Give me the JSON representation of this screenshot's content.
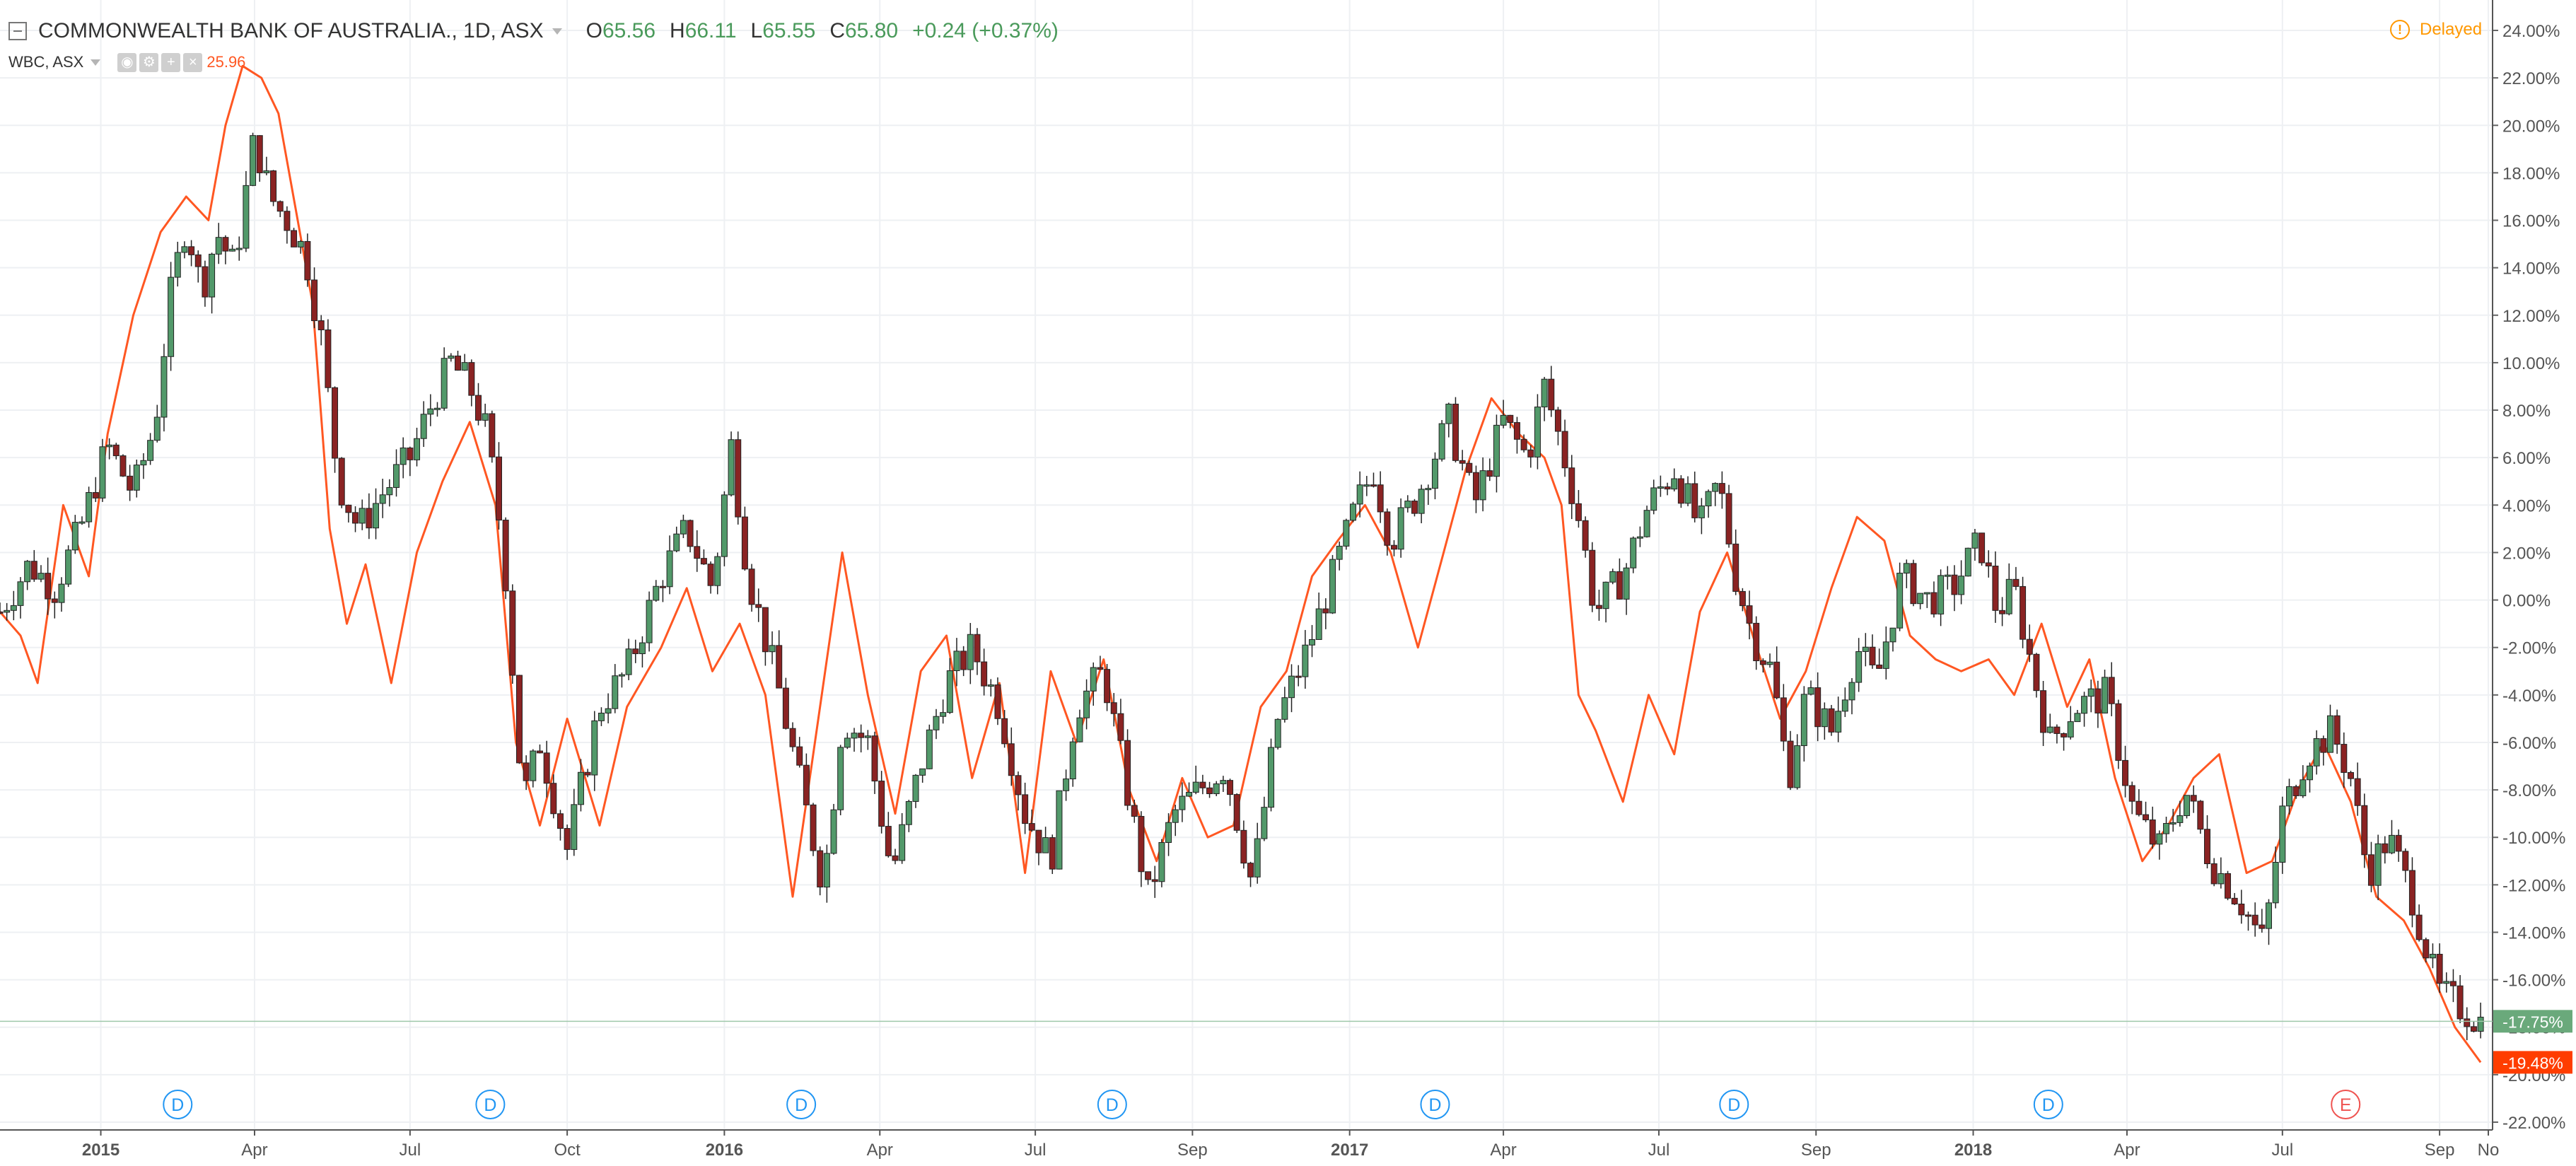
{
  "window": {
    "symbol_title": "COMMONWEALTH BANK OF AUSTRALIA., 1D, ASX",
    "ohlc": [
      {
        "key": "O",
        "value": "65.56"
      },
      {
        "key": "H",
        "value": "66.11"
      },
      {
        "key": "L",
        "value": "65.55"
      },
      {
        "key": "C",
        "value": "65.80"
      }
    ],
    "change": "+0.24 (+0.37%)",
    "delayed_label": "Delayed",
    "compare": {
      "symbol": "WBC, ASX",
      "value": "25.96"
    }
  },
  "colors": {
    "up": "#52996a",
    "down": "#8a2323",
    "compare": "#ff5722",
    "ohlc_green": "#4a9a5b",
    "grid": "#eef0f3",
    "axis": "#555555",
    "delayed": "#ff9800",
    "dividend_marker": "#2196f3",
    "earnings_marker": "#ef5350",
    "last_value_main_bg": "#6aa97b",
    "last_value_compare_bg": "#ff3d00"
  },
  "icons": {
    "collapse": "minus-square-icon",
    "dropdown": "chevron-down-icon",
    "visibility": "eye-icon",
    "settings": "gear-icon",
    "add": "plus-icon",
    "remove": "close-icon",
    "delayed": "exclamation-circle-icon"
  },
  "chart_data": {
    "type": "candlestick",
    "scale": "percentage",
    "ylim": [
      -22,
      24
    ],
    "y_ticks": [
      "24.00%",
      "22.00%",
      "20.00%",
      "18.00%",
      "16.00%",
      "14.00%",
      "12.00%",
      "10.00%",
      "8.00%",
      "6.00%",
      "4.00%",
      "2.00%",
      "0.00%",
      "-2.00%",
      "-4.00%",
      "-6.00%",
      "-8.00%",
      "-10.00%",
      "-12.00%",
      "-14.00%",
      "-16.00%",
      "-18.00%",
      "-20.00%",
      "-22.00%"
    ],
    "x_ticks": [
      "2015",
      "Apr",
      "Jul",
      "Oct",
      "2016",
      "Apr",
      "Jul",
      "Sep",
      "2017",
      "Apr",
      "Jul",
      "Sep",
      "2018",
      "Apr",
      "Jul",
      "Sep",
      "No"
    ],
    "xlim": [
      "2014-11-03",
      "2018-11-01"
    ],
    "grid": true,
    "series": [
      {
        "name": "COMMONWEALTH BANK OF AUSTRALIA., 1D, ASX",
        "style": "candles",
        "last_value_label": "-17.75%",
        "points": [
          [
            "2014-11-03",
            -0.5
          ],
          [
            "2014-11-20",
            1.5
          ],
          [
            "2014-12-05",
            0.5
          ],
          [
            "2014-12-20",
            3.0
          ],
          [
            "2015-01-05",
            6.5
          ],
          [
            "2015-01-20",
            4.5
          ],
          [
            "2015-02-02",
            7.5
          ],
          [
            "2015-02-10",
            12.5
          ],
          [
            "2015-02-20",
            16.0
          ],
          [
            "2015-03-01",
            13.0
          ],
          [
            "2015-03-10",
            15.5
          ],
          [
            "2015-03-20",
            14.0
          ],
          [
            "2015-04-01",
            19.5
          ],
          [
            "2015-04-10",
            17.0
          ],
          [
            "2015-04-20",
            16.0
          ],
          [
            "2015-05-01",
            14.5
          ],
          [
            "2015-05-10",
            11.0
          ],
          [
            "2015-05-20",
            5.0
          ],
          [
            "2015-06-01",
            3.0
          ],
          [
            "2015-06-15",
            4.5
          ],
          [
            "2015-07-01",
            6.0
          ],
          [
            "2015-07-15",
            8.5
          ],
          [
            "2015-07-25",
            10.0
          ],
          [
            "2015-08-05",
            9.0
          ],
          [
            "2015-08-15",
            7.0
          ],
          [
            "2015-08-25",
            2.0
          ],
          [
            "2015-09-05",
            -8.5
          ],
          [
            "2015-09-15",
            -6.0
          ],
          [
            "2015-10-01",
            -10.5
          ],
          [
            "2015-10-20",
            -4.5
          ],
          [
            "2015-11-05",
            -3.0
          ],
          [
            "2015-11-25",
            1.0
          ],
          [
            "2015-12-10",
            3.0
          ],
          [
            "2015-12-25",
            0.5
          ],
          [
            "2016-01-05",
            6.5
          ],
          [
            "2016-01-15",
            1.0
          ],
          [
            "2016-02-01",
            -3.5
          ],
          [
            "2016-02-15",
            -8.0
          ],
          [
            "2016-02-28",
            -12.0
          ],
          [
            "2016-03-10",
            -5.0
          ],
          [
            "2016-03-25",
            -6.0
          ],
          [
            "2016-04-08",
            -11.5
          ],
          [
            "2016-04-25",
            -7.0
          ],
          [
            "2016-05-10",
            -3.5
          ],
          [
            "2016-05-25",
            -2.0
          ],
          [
            "2016-06-10",
            -4.5
          ],
          [
            "2016-06-25",
            -9.0
          ],
          [
            "2016-07-10",
            -11.0
          ],
          [
            "2016-07-25",
            -4.5
          ],
          [
            "2016-08-10",
            -3.0
          ],
          [
            "2016-08-25",
            -8.5
          ],
          [
            "2016-09-05",
            -12.5
          ],
          [
            "2016-09-20",
            -9.0
          ],
          [
            "2016-10-05",
            -8.0
          ],
          [
            "2016-10-20",
            -7.0
          ],
          [
            "2016-11-05",
            -12.0
          ],
          [
            "2016-11-20",
            -5.0
          ],
          [
            "2016-12-05",
            -2.5
          ],
          [
            "2016-12-20",
            0.5
          ],
          [
            "2017-01-05",
            4.0
          ],
          [
            "2017-01-15",
            5.5
          ],
          [
            "2017-01-25",
            2.5
          ],
          [
            "2017-02-10",
            4.5
          ],
          [
            "2017-02-28",
            7.5
          ],
          [
            "2017-03-15",
            4.0
          ],
          [
            "2017-04-01",
            7.5
          ],
          [
            "2017-04-15",
            6.0
          ],
          [
            "2017-04-25",
            9.0
          ],
          [
            "2017-05-05",
            6.5
          ],
          [
            "2017-05-15",
            3.5
          ],
          [
            "2017-05-25",
            -0.5
          ],
          [
            "2017-06-10",
            1.0
          ],
          [
            "2017-06-25",
            4.0
          ],
          [
            "2017-07-10",
            5.5
          ],
          [
            "2017-07-25",
            3.0
          ],
          [
            "2017-08-05",
            5.0
          ],
          [
            "2017-08-15",
            1.0
          ],
          [
            "2017-08-25",
            -1.5
          ],
          [
            "2017-09-05",
            -3.0
          ],
          [
            "2017-09-15",
            -7.5
          ],
          [
            "2017-09-25",
            -4.0
          ],
          [
            "2017-10-10",
            -5.5
          ],
          [
            "2017-10-25",
            -2.0
          ],
          [
            "2017-11-05",
            -3.5
          ],
          [
            "2017-11-20",
            1.0
          ],
          [
            "2017-12-05",
            0.0
          ],
          [
            "2017-12-20",
            0.5
          ],
          [
            "2018-01-05",
            2.5
          ],
          [
            "2018-01-15",
            -0.5
          ],
          [
            "2018-01-25",
            0.5
          ],
          [
            "2018-02-05",
            -3.0
          ],
          [
            "2018-02-15",
            -6.0
          ],
          [
            "2018-03-01",
            -4.5
          ],
          [
            "2018-03-20",
            -4.0
          ],
          [
            "2018-04-05",
            -9.0
          ],
          [
            "2018-04-20",
            -10.5
          ],
          [
            "2018-05-05",
            -8.0
          ],
          [
            "2018-05-20",
            -11.0
          ],
          [
            "2018-06-05",
            -12.5
          ],
          [
            "2018-06-20",
            -14.5
          ],
          [
            "2018-07-01",
            -9.0
          ],
          [
            "2018-07-15",
            -6.5
          ],
          [
            "2018-07-30",
            -5.5
          ],
          [
            "2018-08-10",
            -7.5
          ],
          [
            "2018-08-20",
            -11.5
          ],
          [
            "2018-09-01",
            -10.0
          ],
          [
            "2018-09-15",
            -12.5
          ],
          [
            "2018-09-30",
            -16.5
          ],
          [
            "2018-10-10",
            -17.0
          ],
          [
            "2018-10-25",
            -17.75
          ]
        ]
      },
      {
        "name": "WBC, ASX",
        "style": "line",
        "last_value_label": "-19.48%",
        "points": [
          [
            "2014-11-03",
            -0.5
          ],
          [
            "2014-11-15",
            -1.5
          ],
          [
            "2014-11-25",
            -3.5
          ],
          [
            "2014-12-10",
            4.0
          ],
          [
            "2014-12-25",
            1.0
          ],
          [
            "2015-01-05",
            7.0
          ],
          [
            "2015-01-20",
            12.0
          ],
          [
            "2015-02-05",
            15.5
          ],
          [
            "2015-02-20",
            17.0
          ],
          [
            "2015-03-05",
            16.0
          ],
          [
            "2015-03-15",
            20.0
          ],
          [
            "2015-03-25",
            22.5
          ],
          [
            "2015-04-05",
            22.0
          ],
          [
            "2015-04-15",
            20.5
          ],
          [
            "2015-04-25",
            16.5
          ],
          [
            "2015-05-05",
            12.5
          ],
          [
            "2015-05-15",
            3.0
          ],
          [
            "2015-05-25",
            -1.0
          ],
          [
            "2015-06-05",
            1.5
          ],
          [
            "2015-06-20",
            -3.5
          ],
          [
            "2015-07-05",
            2.0
          ],
          [
            "2015-07-20",
            5.0
          ],
          [
            "2015-08-05",
            7.5
          ],
          [
            "2015-08-20",
            4.0
          ],
          [
            "2015-09-01",
            -6.0
          ],
          [
            "2015-09-15",
            -9.5
          ],
          [
            "2015-10-01",
            -5.0
          ],
          [
            "2015-10-20",
            -9.5
          ],
          [
            "2015-11-05",
            -4.5
          ],
          [
            "2015-11-25",
            -2.0
          ],
          [
            "2015-12-10",
            0.5
          ],
          [
            "2015-12-25",
            -3.0
          ],
          [
            "2016-01-10",
            -1.0
          ],
          [
            "2016-01-25",
            -4.0
          ],
          [
            "2016-02-10",
            -12.5
          ],
          [
            "2016-02-25",
            -5.0
          ],
          [
            "2016-03-10",
            2.0
          ],
          [
            "2016-03-25",
            -4.0
          ],
          [
            "2016-04-10",
            -9.0
          ],
          [
            "2016-04-25",
            -3.0
          ],
          [
            "2016-05-10",
            -1.5
          ],
          [
            "2016-05-25",
            -7.5
          ],
          [
            "2016-06-10",
            -3.5
          ],
          [
            "2016-06-25",
            -11.5
          ],
          [
            "2016-07-10",
            -3.0
          ],
          [
            "2016-07-25",
            -6.0
          ],
          [
            "2016-08-10",
            -2.5
          ],
          [
            "2016-08-25",
            -8.0
          ],
          [
            "2016-09-10",
            -11.0
          ],
          [
            "2016-09-25",
            -7.5
          ],
          [
            "2016-10-10",
            -10.0
          ],
          [
            "2016-10-25",
            -9.5
          ],
          [
            "2016-11-10",
            -4.5
          ],
          [
            "2016-11-25",
            -3.0
          ],
          [
            "2016-12-10",
            1.0
          ],
          [
            "2016-12-25",
            2.5
          ],
          [
            "2017-01-10",
            4.0
          ],
          [
            "2017-01-25",
            2.0
          ],
          [
            "2017-02-10",
            -2.0
          ],
          [
            "2017-02-25",
            2.0
          ],
          [
            "2017-03-10",
            5.5
          ],
          [
            "2017-03-25",
            8.5
          ],
          [
            "2017-04-10",
            7.0
          ],
          [
            "2017-04-25",
            6.0
          ],
          [
            "2017-05-05",
            4.0
          ],
          [
            "2017-05-15",
            -4.0
          ],
          [
            "2017-05-25",
            -5.5
          ],
          [
            "2017-06-10",
            -8.5
          ],
          [
            "2017-06-25",
            -4.0
          ],
          [
            "2017-07-10",
            -6.5
          ],
          [
            "2017-07-25",
            -0.5
          ],
          [
            "2017-08-10",
            2.0
          ],
          [
            "2017-08-25",
            -1.5
          ],
          [
            "2017-09-10",
            -5.0
          ],
          [
            "2017-09-25",
            -3.0
          ],
          [
            "2017-10-10",
            0.5
          ],
          [
            "2017-10-25",
            3.5
          ],
          [
            "2017-11-10",
            2.5
          ],
          [
            "2017-11-25",
            -1.5
          ],
          [
            "2017-12-10",
            -2.5
          ],
          [
            "2017-12-25",
            -3.0
          ],
          [
            "2018-01-10",
            -2.5
          ],
          [
            "2018-01-25",
            -4.0
          ],
          [
            "2018-02-10",
            -1.0
          ],
          [
            "2018-02-25",
            -4.5
          ],
          [
            "2018-03-10",
            -2.5
          ],
          [
            "2018-03-25",
            -7.5
          ],
          [
            "2018-04-10",
            -11.0
          ],
          [
            "2018-04-25",
            -9.5
          ],
          [
            "2018-05-10",
            -7.5
          ],
          [
            "2018-05-25",
            -6.5
          ],
          [
            "2018-06-10",
            -11.5
          ],
          [
            "2018-06-25",
            -11.0
          ],
          [
            "2018-07-10",
            -8.0
          ],
          [
            "2018-07-25",
            -6.0
          ],
          [
            "2018-08-10",
            -8.5
          ],
          [
            "2018-08-25",
            -12.5
          ],
          [
            "2018-09-10",
            -13.5
          ],
          [
            "2018-09-25",
            -15.5
          ],
          [
            "2018-10-10",
            -18.0
          ],
          [
            "2018-10-25",
            -19.48
          ]
        ]
      }
    ],
    "event_markers": [
      {
        "label": "D",
        "kind": "dividend",
        "date": "2015-02-15"
      },
      {
        "label": "D",
        "kind": "dividend",
        "date": "2015-08-17"
      },
      {
        "label": "D",
        "kind": "dividend",
        "date": "2016-02-15"
      },
      {
        "label": "D",
        "kind": "dividend",
        "date": "2016-08-15"
      },
      {
        "label": "D",
        "kind": "dividend",
        "date": "2017-02-20"
      },
      {
        "label": "D",
        "kind": "dividend",
        "date": "2017-08-14"
      },
      {
        "label": "D",
        "kind": "dividend",
        "date": "2018-02-14"
      },
      {
        "label": "E",
        "kind": "earnings",
        "date": "2018-08-07"
      }
    ]
  }
}
